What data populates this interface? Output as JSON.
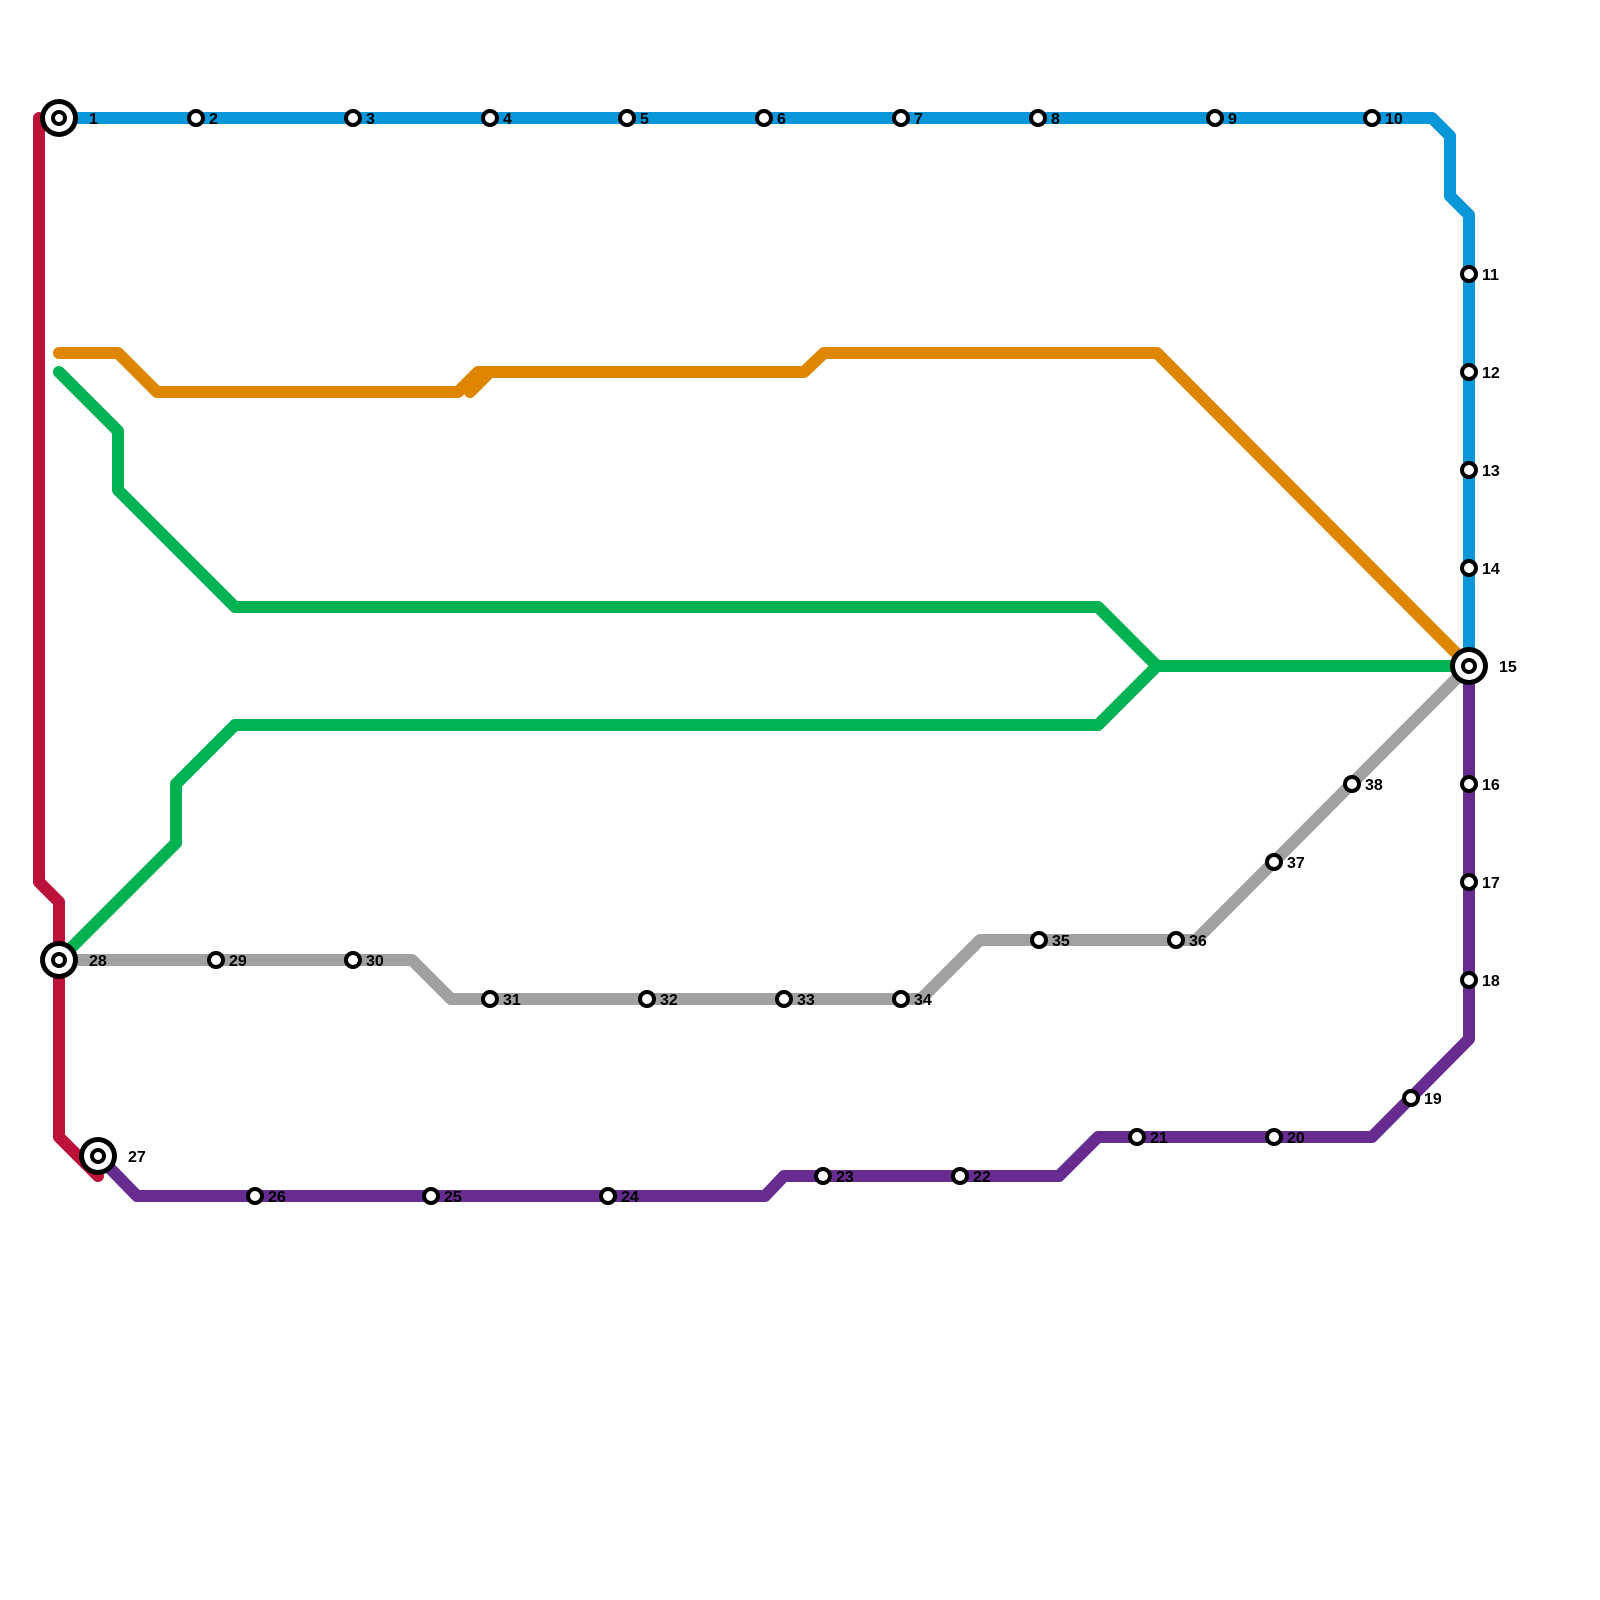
{
  "lines": [
    {
      "id": "blue",
      "color": "#0a97d9"
    },
    {
      "id": "red",
      "color": "#bc1239"
    },
    {
      "id": "orange",
      "color": "#df8600"
    },
    {
      "id": "green",
      "color": "#00b251"
    },
    {
      "id": "grey",
      "color": "#a1a1a1"
    },
    {
      "id": "purple",
      "color": "#662c90"
    }
  ],
  "stations": [
    {
      "label": "1",
      "interchange": true
    },
    {
      "label": "2",
      "interchange": false
    },
    {
      "label": "3",
      "interchange": false
    },
    {
      "label": "4",
      "interchange": false
    },
    {
      "label": "5",
      "interchange": false
    },
    {
      "label": "6",
      "interchange": false
    },
    {
      "label": "7",
      "interchange": false
    },
    {
      "label": "8",
      "interchange": false
    },
    {
      "label": "9",
      "interchange": false
    },
    {
      "label": "10",
      "interchange": false
    },
    {
      "label": "11",
      "interchange": false
    },
    {
      "label": "12",
      "interchange": false
    },
    {
      "label": "13",
      "interchange": false
    },
    {
      "label": "14",
      "interchange": false
    },
    {
      "label": "15",
      "interchange": true
    },
    {
      "label": "16",
      "interchange": false
    },
    {
      "label": "17",
      "interchange": false
    },
    {
      "label": "18",
      "interchange": false
    },
    {
      "label": "19",
      "interchange": false
    },
    {
      "label": "20",
      "interchange": false
    },
    {
      "label": "21",
      "interchange": false
    },
    {
      "label": "22",
      "interchange": false
    },
    {
      "label": "23",
      "interchange": false
    },
    {
      "label": "24",
      "interchange": false
    },
    {
      "label": "25",
      "interchange": false
    },
    {
      "label": "26",
      "interchange": false
    },
    {
      "label": "27",
      "interchange": true
    },
    {
      "label": "28",
      "interchange": true
    },
    {
      "label": "29",
      "interchange": false
    },
    {
      "label": "30",
      "interchange": false
    },
    {
      "label": "31",
      "interchange": false
    },
    {
      "label": "32",
      "interchange": false
    },
    {
      "label": "33",
      "interchange": false
    },
    {
      "label": "34",
      "interchange": false
    },
    {
      "label": "35",
      "interchange": false
    },
    {
      "label": "36",
      "interchange": false
    },
    {
      "label": "37",
      "interchange": false
    },
    {
      "label": "38",
      "interchange": false
    }
  ]
}
